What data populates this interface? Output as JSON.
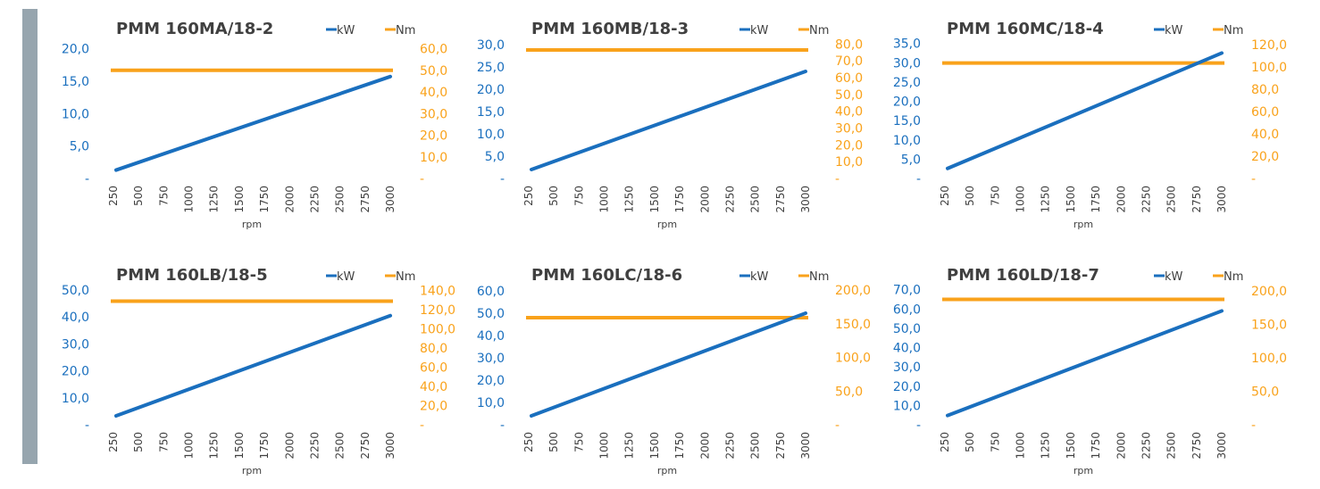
{
  "colors": {
    "kw": "#1a6fbe",
    "nm": "#f9a21b",
    "sidebar": "#96a5ae",
    "text": "#404040"
  },
  "chart_data": [
    {
      "type": "line",
      "title": "PMM 160MA/18-2",
      "x": [
        250,
        500,
        750,
        1000,
        1250,
        1500,
        1750,
        2000,
        2250,
        2500,
        2750,
        3000
      ],
      "xtick_labels": [
        "250",
        "500",
        "750",
        "1000",
        "1250",
        "1500",
        "1750",
        "2000",
        "2250",
        "2500",
        "2750",
        "3000"
      ],
      "xlabel": "rpm",
      "series": [
        {
          "name": "kW",
          "axis": "left",
          "start": 1.3,
          "end": 15.7
        },
        {
          "name": "Nm",
          "axis": "right",
          "start": 50.0,
          "end": 50.0
        }
      ],
      "ylim_left": [
        0,
        22
      ],
      "ylim_right": [
        0,
        66
      ],
      "yticks_left": [
        {
          "v": 0,
          "label": "-"
        },
        {
          "v": 5,
          "label": "5,0"
        },
        {
          "v": 10,
          "label": "10,0"
        },
        {
          "v": 15,
          "label": "15,0"
        },
        {
          "v": 20,
          "label": "20,0"
        }
      ],
      "yticks_right": [
        {
          "v": 0,
          "label": "-"
        },
        {
          "v": 10,
          "label": "10,0"
        },
        {
          "v": 20,
          "label": "20,0"
        },
        {
          "v": 30,
          "label": "30,0"
        },
        {
          "v": 40,
          "label": "40,0"
        },
        {
          "v": 50,
          "label": "50,0"
        },
        {
          "v": 60,
          "label": "60,0"
        }
      ]
    },
    {
      "type": "line",
      "title": "PMM 160MB/18-3",
      "x": [
        250,
        500,
        750,
        1000,
        1250,
        1500,
        1750,
        2000,
        2250,
        2500,
        2750,
        3000
      ],
      "xtick_labels": [
        "250",
        "500",
        "750",
        "1000",
        "1250",
        "1500",
        "1750",
        "2000",
        "2250",
        "2500",
        "2750",
        "3000"
      ],
      "xlabel": "rpm",
      "series": [
        {
          "name": "kW",
          "axis": "left",
          "start": 2.0,
          "end": 24.0
        },
        {
          "name": "Nm",
          "axis": "right",
          "start": 76.5,
          "end": 76.5
        }
      ],
      "ylim_left": [
        0,
        32
      ],
      "ylim_right": [
        0,
        85
      ],
      "yticks_left": [
        {
          "v": 0,
          "label": "-"
        },
        {
          "v": 5,
          "label": "5,0"
        },
        {
          "v": 10,
          "label": "10,0"
        },
        {
          "v": 15,
          "label": "15,0"
        },
        {
          "v": 20,
          "label": "20,0"
        },
        {
          "v": 25,
          "label": "25,0"
        },
        {
          "v": 30,
          "label": "30,0"
        }
      ],
      "yticks_right": [
        {
          "v": 0,
          "label": "-"
        },
        {
          "v": 10,
          "label": "10,0"
        },
        {
          "v": 20,
          "label": "20,0"
        },
        {
          "v": 30,
          "label": "30,0"
        },
        {
          "v": 40,
          "label": "40,0"
        },
        {
          "v": 50,
          "label": "50,0"
        },
        {
          "v": 60,
          "label": "60,0"
        },
        {
          "v": 70,
          "label": "70,0"
        },
        {
          "v": 80,
          "label": "80,0"
        }
      ]
    },
    {
      "type": "line",
      "title": "PMM 160MC/18-4",
      "x": [
        250,
        500,
        750,
        1000,
        1250,
        1500,
        1750,
        2000,
        2250,
        2500,
        2750,
        3000
      ],
      "xtick_labels": [
        "250",
        "500",
        "750",
        "1000",
        "1250",
        "1500",
        "1750",
        "2000",
        "2250",
        "2500",
        "2750",
        "3000"
      ],
      "xlabel": "rpm",
      "series": [
        {
          "name": "kW",
          "axis": "left",
          "start": 2.6,
          "end": 32.5
        },
        {
          "name": "Nm",
          "axis": "right",
          "start": 103.5,
          "end": 103.5
        }
      ],
      "ylim_left": [
        0,
        37
      ],
      "ylim_right": [
        0,
        128
      ],
      "yticks_left": [
        {
          "v": 0,
          "label": "-"
        },
        {
          "v": 5,
          "label": "5,0"
        },
        {
          "v": 10,
          "label": "10,0"
        },
        {
          "v": 15,
          "label": "15,0"
        },
        {
          "v": 20,
          "label": "20,0"
        },
        {
          "v": 25,
          "label": "25,0"
        },
        {
          "v": 30,
          "label": "30,0"
        },
        {
          "v": 35,
          "label": "35,0"
        }
      ],
      "yticks_right": [
        {
          "v": 0,
          "label": "-"
        },
        {
          "v": 20,
          "label": "20,0"
        },
        {
          "v": 40,
          "label": "40,0"
        },
        {
          "v": 60,
          "label": "60,0"
        },
        {
          "v": 80,
          "label": "80,0"
        },
        {
          "v": 100,
          "label": "100,0"
        },
        {
          "v": 120,
          "label": "120,0"
        }
      ]
    },
    {
      "type": "line",
      "title": "PMM 160LB/18-5",
      "x": [
        250,
        500,
        750,
        1000,
        1250,
        1500,
        1750,
        2000,
        2250,
        2500,
        2750,
        3000
      ],
      "xtick_labels": [
        "250",
        "500",
        "750",
        "1000",
        "1250",
        "1500",
        "1750",
        "2000",
        "2250",
        "2500",
        "2750",
        "3000"
      ],
      "xlabel": "rpm",
      "series": [
        {
          "name": "kW",
          "axis": "left",
          "start": 3.3,
          "end": 40.5
        },
        {
          "name": "Nm",
          "axis": "right",
          "start": 129,
          "end": 129
        }
      ],
      "ylim_left": [
        0,
        53
      ],
      "ylim_right": [
        0,
        149
      ],
      "yticks_left": [
        {
          "v": 0,
          "label": "-"
        },
        {
          "v": 10,
          "label": "10,0"
        },
        {
          "v": 20,
          "label": "20,0"
        },
        {
          "v": 30,
          "label": "30,0"
        },
        {
          "v": 40,
          "label": "40,0"
        },
        {
          "v": 50,
          "label": "50,0"
        }
      ],
      "yticks_right": [
        {
          "v": 0,
          "label": "-"
        },
        {
          "v": 20,
          "label": "20,0"
        },
        {
          "v": 40,
          "label": "40,0"
        },
        {
          "v": 60,
          "label": "60,0"
        },
        {
          "v": 80,
          "label": "80,0"
        },
        {
          "v": 100,
          "label": "100,0"
        },
        {
          "v": 120,
          "label": "120,0"
        },
        {
          "v": 140,
          "label": "140,0"
        }
      ]
    },
    {
      "type": "line",
      "title": "PMM 160LC/18-6",
      "x": [
        250,
        500,
        750,
        1000,
        1250,
        1500,
        1750,
        2000,
        2250,
        2500,
        2750,
        3000
      ],
      "xtick_labels": [
        "250",
        "500",
        "750",
        "1000",
        "1250",
        "1500",
        "1750",
        "2000",
        "2250",
        "2500",
        "2750",
        "3000"
      ],
      "xlabel": "rpm",
      "series": [
        {
          "name": "kW",
          "axis": "left",
          "start": 4.0,
          "end": 50.0
        },
        {
          "name": "Nm",
          "axis": "right",
          "start": 159,
          "end": 159
        }
      ],
      "ylim_left": [
        0,
        64
      ],
      "ylim_right": [
        0,
        212
      ],
      "yticks_left": [
        {
          "v": 0,
          "label": "-"
        },
        {
          "v": 10,
          "label": "10,0"
        },
        {
          "v": 20,
          "label": "20,0"
        },
        {
          "v": 30,
          "label": "30,0"
        },
        {
          "v": 40,
          "label": "40,0"
        },
        {
          "v": 50,
          "label": "50,0"
        },
        {
          "v": 60,
          "label": "60,0"
        }
      ],
      "yticks_right": [
        {
          "v": 0,
          "label": "-"
        },
        {
          "v": 50,
          "label": "50,0"
        },
        {
          "v": 100,
          "label": "100,0"
        },
        {
          "v": 150,
          "label": "150,0"
        },
        {
          "v": 200,
          "label": "200,0"
        }
      ]
    },
    {
      "type": "line",
      "title": "PMM 160LD/18-7",
      "x": [
        250,
        500,
        750,
        1000,
        1250,
        1500,
        1750,
        2000,
        2250,
        2500,
        2750,
        3000
      ],
      "xtick_labels": [
        "250",
        "500",
        "750",
        "1000",
        "1250",
        "1500",
        "1750",
        "2000",
        "2250",
        "2500",
        "2750",
        "3000"
      ],
      "xlabel": "rpm",
      "series": [
        {
          "name": "kW",
          "axis": "left",
          "start": 4.8,
          "end": 59.0
        },
        {
          "name": "Nm",
          "axis": "right",
          "start": 187,
          "end": 187
        }
      ],
      "ylim_left": [
        0,
        74
      ],
      "ylim_right": [
        0,
        213
      ],
      "yticks_left": [
        {
          "v": 0,
          "label": "-"
        },
        {
          "v": 10,
          "label": "10,0"
        },
        {
          "v": 20,
          "label": "20,0"
        },
        {
          "v": 30,
          "label": "30,0"
        },
        {
          "v": 40,
          "label": "40,0"
        },
        {
          "v": 50,
          "label": "50,0"
        },
        {
          "v": 60,
          "label": "60,0"
        },
        {
          "v": 70,
          "label": "70,0"
        }
      ],
      "yticks_right": [
        {
          "v": 0,
          "label": "-"
        },
        {
          "v": 50,
          "label": "50,0"
        },
        {
          "v": 100,
          "label": "100,0"
        },
        {
          "v": 150,
          "label": "150,0"
        },
        {
          "v": 200,
          "label": "200,0"
        }
      ]
    }
  ]
}
